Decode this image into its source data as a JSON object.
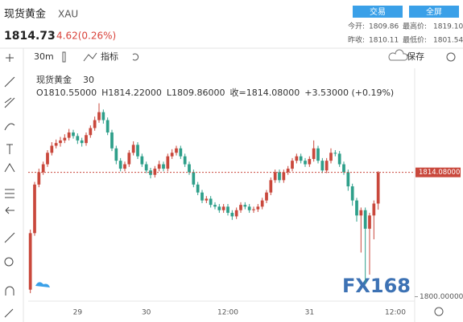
{
  "header": {
    "title": "现货黄金",
    "symbol": "XAU",
    "price": "1814.73",
    "change": "4.62(0.26%)",
    "buttons": [
      "交易",
      "全屏"
    ],
    "stats": [
      [
        "今开:",
        "1809.86",
        "最高价:",
        "1819.10"
      ],
      [
        "昨收:",
        "1810.11",
        "最低价:",
        "1801.54"
      ]
    ]
  },
  "toolbar": {
    "interval": "30m",
    "indicators": "指标",
    "save": "保存"
  },
  "chart_data": {
    "type": "candlestick",
    "title": "现货黄金",
    "subtitle": "30",
    "ohlc_legend": [
      "O1810.55000",
      "H1814.22000",
      "L1809.86000",
      "收=1814.08000",
      "+3.53000 (+0.19%)"
    ],
    "watermark": "FX168",
    "categories": [
      null,
      null,
      null,
      null,
      null,
      null,
      null,
      null,
      null,
      null,
      null,
      "29",
      null,
      null,
      null,
      null,
      null,
      null,
      null,
      null,
      null,
      null,
      null,
      null,
      null,
      null,
      null,
      "30",
      null,
      null,
      null,
      null,
      null,
      null,
      null,
      null,
      null,
      null,
      null,
      null,
      null,
      null,
      null,
      null,
      null,
      null,
      "12:00",
      null,
      null,
      null,
      null,
      null,
      null,
      null,
      null,
      null,
      null,
      null,
      null,
      null,
      null,
      null,
      null,
      null,
      null,
      "31",
      null,
      null,
      null,
      null,
      null,
      null,
      null,
      null,
      null,
      null,
      null,
      null,
      null,
      null,
      null,
      null,
      null,
      null,
      null,
      "12:00",
      null,
      null,
      null,
      null
    ],
    "open": [
      1800.8,
      1807.2,
      1812.7,
      1814.1,
      1815.0,
      1816.3,
      1817.1,
      1817.4,
      1817.7,
      1818.0,
      1818.6,
      1818.2,
      1817.7,
      1817.4,
      1818.3,
      1819.1,
      1820.0,
      1820.9,
      1820.0,
      1818.6,
      1816.8,
      1815.4,
      1814.5,
      1815.0,
      1816.3,
      1817.2,
      1815.9,
      1815.0,
      1814.3,
      1813.8,
      1814.5,
      1815.0,
      1814.5,
      1815.9,
      1816.3,
      1816.8,
      1815.9,
      1815.0,
      1814.1,
      1812.7,
      1811.8,
      1810.9,
      1811.1,
      1810.4,
      1810.2,
      1809.8,
      1810.2,
      1809.5,
      1809.1,
      1809.8,
      1810.4,
      1810.2,
      1809.8,
      1809.9,
      1810.2,
      1810.9,
      1811.8,
      1813.2,
      1814.1,
      1813.2,
      1814.1,
      1814.5,
      1815.4,
      1815.9,
      1815.4,
      1815.0,
      1815.6,
      1816.8,
      1815.4,
      1814.3,
      1815.4,
      1816.3,
      1816.2,
      1815.0,
      1814.1,
      1812.5,
      1810.9,
      1809.2,
      1809.8,
      1807.7,
      1809.2,
      1810.55,
      null,
      null,
      null,
      null,
      null,
      null,
      null,
      null
    ],
    "high": [
      1807.6,
      1813.0,
      1814.5,
      1815.3,
      1816.6,
      1817.5,
      1817.8,
      1818.1,
      1818.4,
      1819.0,
      1818.9,
      1818.5,
      1818.0,
      1818.6,
      1819.4,
      1820.4,
      1821.9,
      1821.2,
      1820.3,
      1818.9,
      1817.1,
      1815.7,
      1815.3,
      1816.6,
      1817.6,
      1817.5,
      1816.2,
      1815.3,
      1814.6,
      1814.8,
      1815.4,
      1815.3,
      1816.2,
      1816.7,
      1817.1,
      1817.1,
      1816.2,
      1815.3,
      1814.4,
      1813.0,
      1812.1,
      1811.4,
      1811.4,
      1810.7,
      1810.5,
      1810.5,
      1810.5,
      1809.8,
      1810.1,
      1810.7,
      1810.7,
      1810.5,
      1810.2,
      1810.5,
      1811.2,
      1812.1,
      1813.5,
      1814.4,
      1814.4,
      1814.4,
      1814.8,
      1815.7,
      1816.2,
      1816.2,
      1815.7,
      1815.9,
      1817.7,
      1817.1,
      1815.7,
      1815.7,
      1816.8,
      1816.6,
      1816.5,
      1815.3,
      1814.4,
      1812.8,
      1811.2,
      1810.1,
      1810.1,
      1809.5,
      1810.9,
      1814.22,
      null,
      null,
      null,
      null,
      null,
      null,
      null,
      null
    ],
    "low": [
      1800.4,
      1806.9,
      1812.4,
      1813.8,
      1814.7,
      1816.0,
      1816.8,
      1817.0,
      1817.4,
      1817.7,
      1817.9,
      1817.3,
      1817.0,
      1817.1,
      1818.0,
      1818.8,
      1819.7,
      1819.6,
      1818.3,
      1816.5,
      1815.0,
      1814.2,
      1814.2,
      1814.7,
      1816.0,
      1815.6,
      1814.7,
      1814.0,
      1813.4,
      1813.5,
      1814.2,
      1814.2,
      1814.2,
      1815.6,
      1816.0,
      1815.6,
      1814.7,
      1813.8,
      1812.4,
      1811.5,
      1810.6,
      1810.6,
      1810.1,
      1809.9,
      1809.5,
      1809.5,
      1809.2,
      1808.7,
      1808.8,
      1809.5,
      1809.9,
      1809.5,
      1809.5,
      1809.6,
      1809.9,
      1810.6,
      1811.5,
      1812.9,
      1812.9,
      1812.9,
      1813.8,
      1814.2,
      1815.1,
      1815.1,
      1814.7,
      1814.7,
      1815.3,
      1815.1,
      1814.0,
      1814.0,
      1815.1,
      1815.9,
      1814.7,
      1813.8,
      1812.0,
      1810.3,
      1808.5,
      1805.0,
      1801.5,
      1802.5,
      1806.5,
      1809.86,
      null,
      null,
      null,
      null,
      null,
      null,
      null,
      null
    ],
    "close": [
      1807.2,
      1812.7,
      1814.1,
      1815.0,
      1816.3,
      1817.1,
      1817.4,
      1817.7,
      1818.0,
      1818.6,
      1818.2,
      1817.7,
      1817.4,
      1818.3,
      1819.1,
      1820.0,
      1820.9,
      1820.0,
      1818.6,
      1816.8,
      1815.4,
      1814.5,
      1815.0,
      1816.3,
      1817.2,
      1815.9,
      1815.0,
      1814.3,
      1813.8,
      1814.5,
      1815.0,
      1814.5,
      1815.9,
      1816.3,
      1816.8,
      1815.9,
      1815.0,
      1814.1,
      1812.7,
      1811.8,
      1810.9,
      1811.1,
      1810.4,
      1810.2,
      1809.8,
      1810.2,
      1809.5,
      1809.1,
      1809.8,
      1810.4,
      1810.2,
      1809.8,
      1809.9,
      1810.2,
      1810.9,
      1811.8,
      1813.2,
      1814.1,
      1813.2,
      1814.1,
      1814.5,
      1815.4,
      1815.9,
      1815.4,
      1815.0,
      1815.6,
      1816.8,
      1815.4,
      1814.3,
      1815.4,
      1816.3,
      1816.2,
      1815.0,
      1814.1,
      1812.5,
      1810.9,
      1809.2,
      1809.8,
      1807.7,
      1809.2,
      1810.55,
      1814.08,
      null,
      null,
      null,
      null,
      null,
      null,
      null,
      null
    ],
    "up_color": "#c9483c",
    "down_color": "#2e9f8a",
    "ylim": [
      1799.5,
      1825.6
    ],
    "yticks": [
      {
        "value": 1800,
        "label": "1800.00000"
      }
    ],
    "last_price": {
      "value": 1814.08,
      "label": "1814.08000"
    },
    "grid": false
  }
}
